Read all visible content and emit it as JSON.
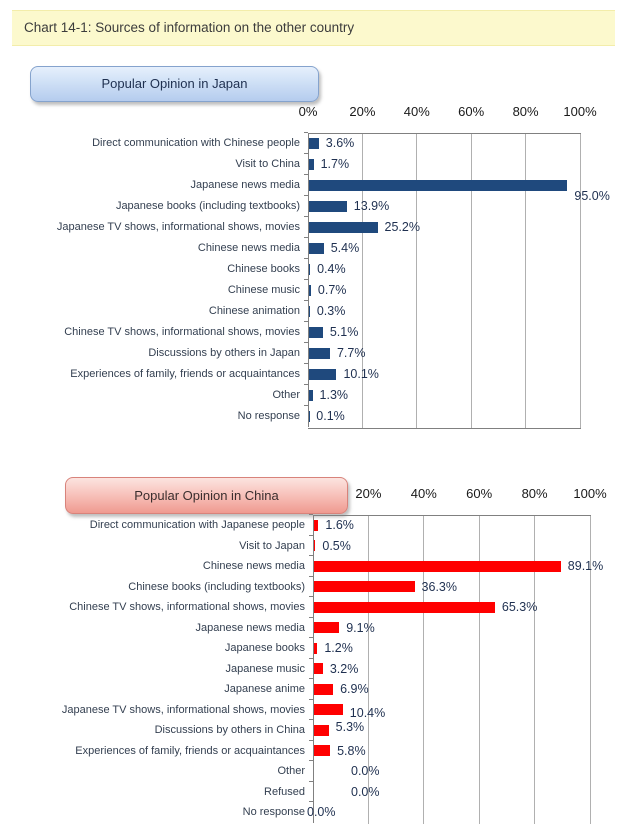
{
  "page": {
    "title": "Chart 14-1: Sources of information on the other country"
  },
  "chart_data": [
    {
      "type": "bar",
      "title": "Popular Opinion in Japan",
      "orientation": "horizontal",
      "bar_color": "#1F497D",
      "xlabel": "",
      "ylabel": "",
      "xlim": [
        0,
        100
      ],
      "grid": true,
      "x_ticks": [
        {
          "label": "0%",
          "pct": 0
        },
        {
          "label": "20%",
          "pct": 20
        },
        {
          "label": "40%",
          "pct": 40
        },
        {
          "label": "60%",
          "pct": 60
        },
        {
          "label": "80%",
          "pct": 80
        },
        {
          "label": "100%",
          "pct": 100
        }
      ],
      "categories": [
        "Direct communication with Chinese people",
        "Visit to China",
        "Japanese news media",
        "Japanese books (including textbooks)",
        "Japanese TV shows, informational shows, movies",
        "Chinese news media",
        "Chinese books",
        "Chinese music",
        "Chinese animation",
        "Chinese TV shows, informational shows, movies",
        "Discussions by others in Japan",
        "Experiences of family, friends or acquaintances",
        "Other",
        "No response"
      ],
      "values": [
        3.6,
        1.7,
        95.0,
        13.9,
        25.2,
        5.4,
        0.4,
        0.7,
        0.3,
        5.1,
        7.7,
        10.1,
        1.3,
        0.1
      ],
      "value_labels": [
        "3.6%",
        "1.7%",
        "95.0%",
        "13.9%",
        "25.2%",
        "5.4%",
        "0.4%",
        "0.7%",
        "0.3%",
        "5.1%",
        "7.7%",
        "10.1%",
        "1.3%",
        "0.1%"
      ],
      "label_dx": [
        0,
        0,
        0,
        0,
        0,
        0,
        0,
        0,
        0,
        0,
        0,
        0,
        0,
        0
      ],
      "label_dy": [
        0,
        0,
        11,
        0,
        0,
        0,
        0,
        0,
        0,
        0,
        0,
        0,
        0,
        0
      ]
    },
    {
      "type": "bar",
      "title": "Popular Opinion in China",
      "orientation": "horizontal",
      "bar_color": "#FF0000",
      "xlabel": "",
      "ylabel": "",
      "xlim": [
        0,
        100
      ],
      "grid": true,
      "x_ticks": [
        {
          "label": "20%",
          "pct": 20
        },
        {
          "label": "40%",
          "pct": 40
        },
        {
          "label": "60%",
          "pct": 60
        },
        {
          "label": "80%",
          "pct": 80
        },
        {
          "label": "100%",
          "pct": 100
        }
      ],
      "categories": [
        "Direct communication with Japanese people",
        "Visit to Japan",
        "Chinese news media",
        "Chinese books (including textbooks)",
        "Chinese TV shows, informational shows, movies",
        "Japanese news media",
        "Japanese books",
        "Japanese music",
        "Japanese anime",
        "Japanese TV shows, informational shows, movies",
        "Discussions by others in China",
        "Experiences of family, friends or acquaintances",
        "Other",
        "Refused",
        "No response"
      ],
      "values": [
        1.6,
        0.5,
        89.1,
        36.3,
        65.3,
        9.1,
        1.2,
        3.2,
        6.9,
        10.4,
        5.3,
        5.8,
        0.0,
        0.0,
        0.0
      ],
      "value_labels": [
        "1.6%",
        "0.5%",
        "89.1%",
        "36.3%",
        "65.3%",
        "9.1%",
        "1.2%",
        "3.2%",
        "6.9%",
        "10.4%",
        "5.3%",
        "5.8%",
        "0.0%",
        "0.0%",
        "0.0%"
      ],
      "label_dx": [
        0,
        0,
        0,
        0,
        0,
        0,
        0,
        0,
        0,
        0,
        0,
        0,
        30,
        30,
        -14
      ],
      "label_dy": [
        0,
        0,
        0,
        0,
        0,
        0,
        0,
        0,
        0,
        3,
        -3,
        0,
        0,
        0,
        0
      ]
    }
  ]
}
